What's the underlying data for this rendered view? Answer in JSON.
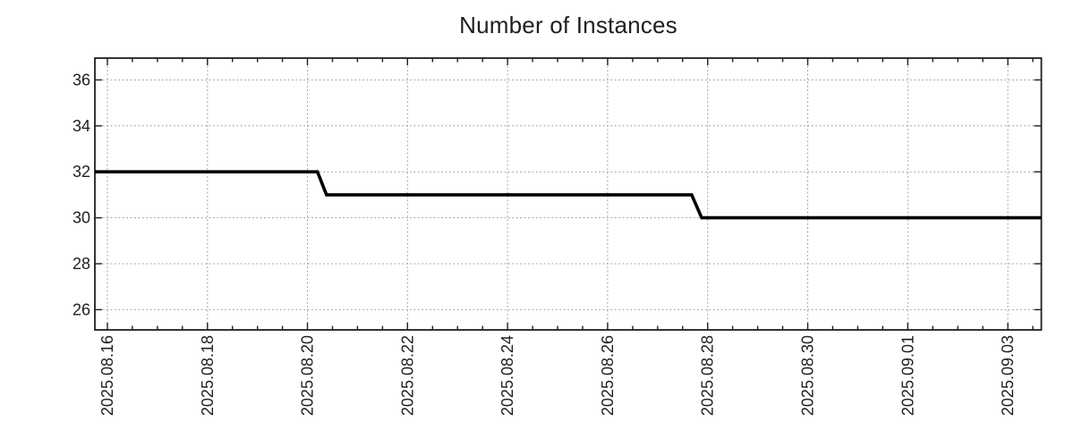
{
  "chart_data": {
    "type": "line",
    "title": "Number of Instances",
    "legend": "none",
    "grid": "dotted",
    "x_axis": {
      "tick_labels": [
        "2025.08.16",
        "2025.08.18",
        "2025.08.20",
        "2025.08.22",
        "2025.08.24",
        "2025.08.26",
        "2025.08.28",
        "2025.08.30",
        "2025.09.01",
        "2025.09.03"
      ],
      "major_ticks_days": [
        0,
        2,
        4,
        6,
        8,
        10,
        12,
        14,
        16,
        18
      ],
      "minor_tick_step_days": 0.5,
      "range_days": [
        -0.25,
        18.67
      ]
    },
    "y_axis": {
      "tick_values": [
        36,
        34,
        32,
        30,
        28,
        26
      ],
      "range": [
        25.12,
        36.95
      ]
    },
    "series": [
      {
        "name": "Number of Instances",
        "color": "#000000",
        "line_width": 3.6,
        "points": [
          {
            "day": -0.25,
            "value": 32
          },
          {
            "day": 4.2,
            "value": 32
          },
          {
            "day": 4.38,
            "value": 31
          },
          {
            "day": 11.68,
            "value": 31
          },
          {
            "day": 11.88,
            "value": 30
          },
          {
            "day": 18.67,
            "value": 30
          }
        ]
      }
    ],
    "colors": {
      "line": "#000000",
      "grid": "#9c9c9c",
      "axis": "#1f1f1f",
      "text": "#1f1f1f",
      "background": "#ffffff"
    }
  }
}
